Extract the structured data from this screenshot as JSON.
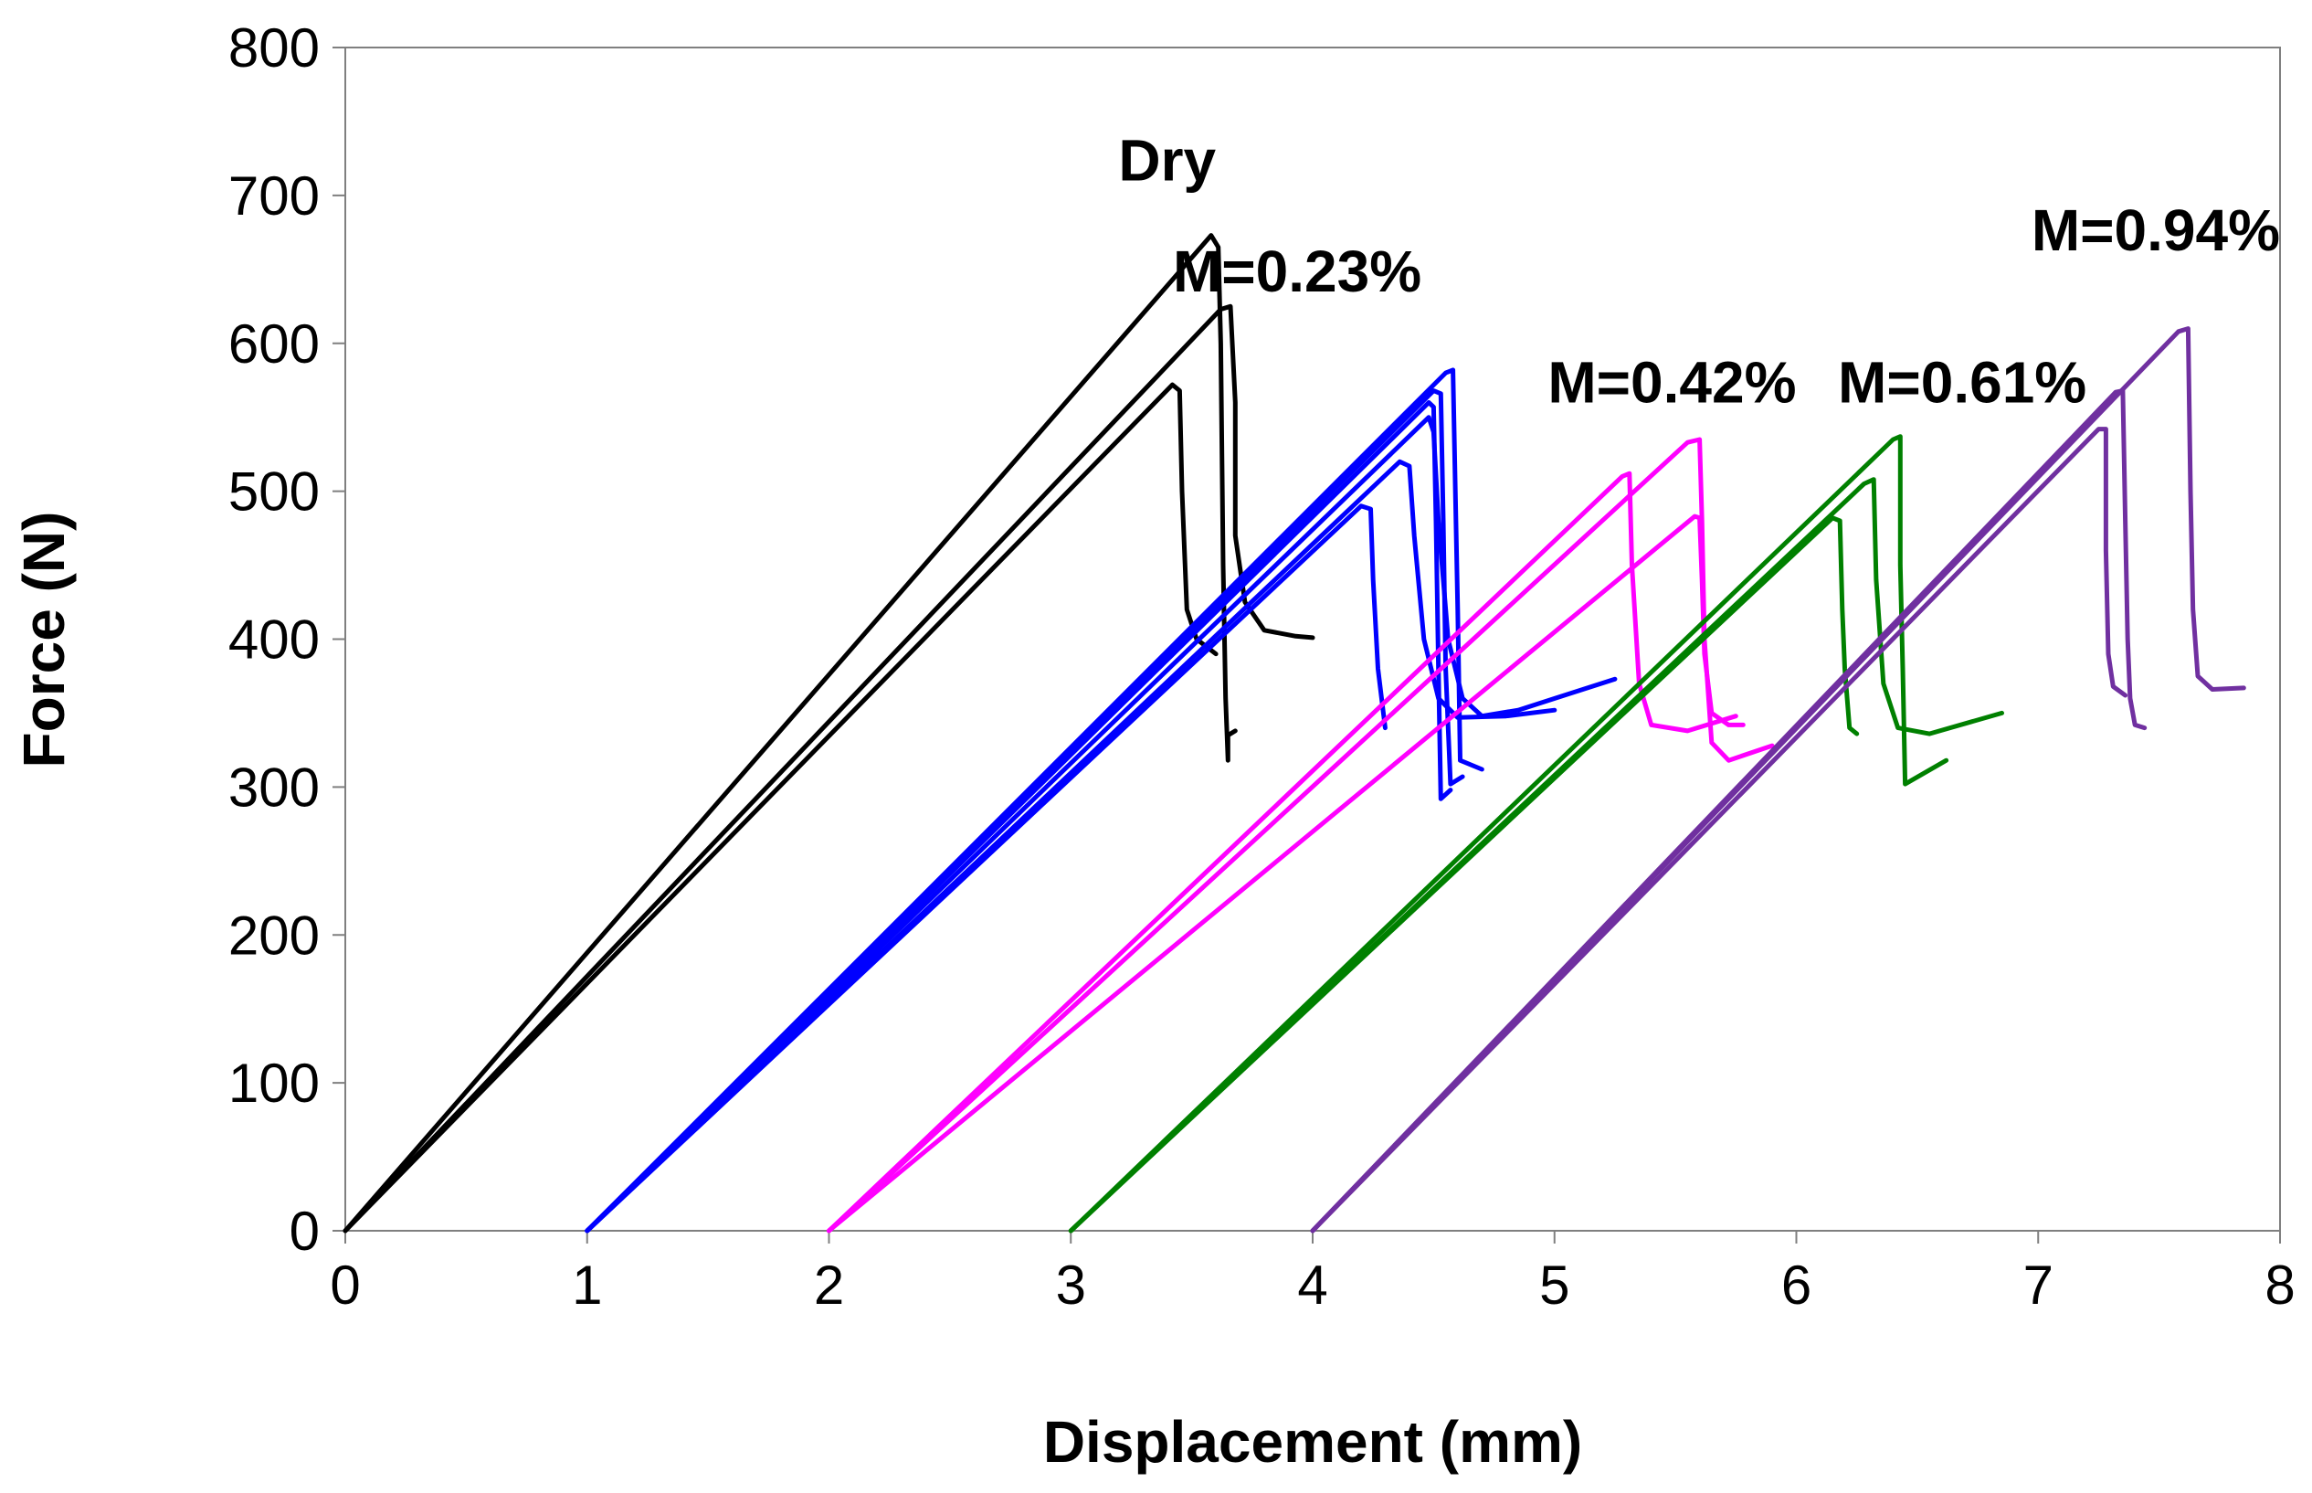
{
  "chart_data": {
    "type": "line",
    "title": "",
    "xlabel": "Displacement (mm)",
    "ylabel": "Force (N)",
    "xlim": [
      0,
      8
    ],
    "ylim": [
      0,
      800
    ],
    "xticks": [
      0,
      1,
      2,
      3,
      4,
      5,
      6,
      7,
      8
    ],
    "yticks": [
      0,
      100,
      200,
      300,
      400,
      500,
      600,
      700,
      800
    ],
    "grid": false,
    "legend": "none",
    "groups": [
      {
        "name": "Dry",
        "label": "Dry",
        "color": "#000000",
        "label_at": [
          3.6,
          710
        ],
        "curves": [
          [
            [
              0,
              0
            ],
            [
              3.58,
              673
            ],
            [
              3.61,
              665
            ],
            [
              3.62,
              600
            ],
            [
              3.63,
              450
            ],
            [
              3.64,
              360
            ],
            [
              3.65,
              318
            ],
            [
              3.65,
              335
            ],
            [
              3.68,
              338
            ]
          ],
          [
            [
              0,
              0
            ],
            [
              3.62,
              623
            ],
            [
              3.66,
              625
            ],
            [
              3.68,
              560
            ],
            [
              3.68,
              470
            ],
            [
              3.72,
              425
            ],
            [
              3.8,
              406
            ],
            [
              3.93,
              402
            ],
            [
              4.0,
              401
            ]
          ],
          [
            [
              0,
              0
            ],
            [
              3.42,
              572
            ],
            [
              3.45,
              568
            ],
            [
              3.46,
              500
            ],
            [
              3.48,
              420
            ],
            [
              3.52,
              400
            ],
            [
              3.6,
              390
            ]
          ]
        ]
      },
      {
        "name": "M=0.23%",
        "label": "M=0.23%",
        "color": "#0000ff",
        "label_at": [
          4.45,
          635
        ],
        "curves": [
          [
            [
              1,
              0
            ],
            [
              4.55,
              580
            ],
            [
              4.58,
              582
            ],
            [
              4.59,
              500
            ],
            [
              4.6,
              420
            ],
            [
              4.61,
              318
            ],
            [
              4.7,
              312
            ]
          ],
          [
            [
              1,
              0
            ],
            [
              4.5,
              568
            ],
            [
              4.53,
              566
            ],
            [
              4.54,
              480
            ],
            [
              4.55,
              380
            ],
            [
              4.57,
              302
            ],
            [
              4.62,
              307
            ]
          ],
          [
            [
              1,
              0
            ],
            [
              4.48,
              560
            ],
            [
              4.5,
              557
            ],
            [
              4.51,
              480
            ],
            [
              4.52,
              380
            ],
            [
              4.53,
              292
            ],
            [
              4.57,
              298
            ]
          ],
          [
            [
              1,
              0
            ],
            [
              4.36,
              520
            ],
            [
              4.4,
              517
            ],
            [
              4.42,
              470
            ],
            [
              4.46,
              400
            ],
            [
              4.52,
              360
            ],
            [
              4.6,
              347
            ],
            [
              4.8,
              348
            ],
            [
              5.0,
              352
            ]
          ],
          [
            [
              1,
              0
            ],
            [
              4.2,
              490
            ],
            [
              4.24,
              488
            ],
            [
              4.25,
              440
            ],
            [
              4.27,
              380
            ],
            [
              4.3,
              340
            ]
          ],
          [
            [
              1,
              0
            ],
            [
              4.48,
              550
            ],
            [
              4.5,
              540
            ],
            [
              4.52,
              480
            ],
            [
              4.56,
              400
            ],
            [
              4.62,
              360
            ],
            [
              4.7,
              348
            ],
            [
              4.85,
              352
            ],
            [
              5.25,
              373
            ]
          ]
        ]
      },
      {
        "name": "M=0.42%",
        "label": "M=0.42%",
        "color": "#ff00ff",
        "label_at": [
          6.0,
          560
        ],
        "curves": [
          [
            [
              2,
              0
            ],
            [
              5.55,
              533
            ],
            [
              5.6,
              535
            ],
            [
              5.61,
              480
            ],
            [
              5.62,
              400
            ],
            [
              5.65,
              330
            ],
            [
              5.72,
              318
            ],
            [
              5.9,
              328
            ]
          ],
          [
            [
              2,
              0
            ],
            [
              5.28,
              510
            ],
            [
              5.31,
              512
            ],
            [
              5.32,
              450
            ],
            [
              5.35,
              370
            ],
            [
              5.4,
              342
            ],
            [
              5.55,
              338
            ],
            [
              5.75,
              348
            ]
          ],
          [
            [
              2,
              0
            ],
            [
              5.58,
              483
            ],
            [
              5.6,
              482
            ],
            [
              5.61,
              440
            ],
            [
              5.62,
              390
            ],
            [
              5.65,
              350
            ],
            [
              5.72,
              342
            ],
            [
              5.78,
              342
            ]
          ]
        ]
      },
      {
        "name": "M=0.61%",
        "label": "M=0.61%",
        "color": "#008000",
        "label_at": [
          7.2,
          560
        ],
        "curves": [
          [
            [
              3,
              0
            ],
            [
              6.4,
              535
            ],
            [
              6.43,
              537
            ],
            [
              6.43,
              450
            ],
            [
              6.44,
              380
            ],
            [
              6.45,
              302
            ],
            [
              6.62,
              318
            ]
          ],
          [
            [
              3,
              0
            ],
            [
              6.28,
              505
            ],
            [
              6.32,
              508
            ],
            [
              6.33,
              440
            ],
            [
              6.36,
              370
            ],
            [
              6.42,
              340
            ],
            [
              6.55,
              336
            ],
            [
              6.85,
              350
            ]
          ],
          [
            [
              3,
              0
            ],
            [
              6.15,
              482
            ],
            [
              6.18,
              480
            ],
            [
              6.19,
              420
            ],
            [
              6.2,
              380
            ],
            [
              6.22,
              340
            ],
            [
              6.25,
              336
            ]
          ]
        ]
      },
      {
        "name": "M=0.94%",
        "label": "M=0.94%",
        "color": "#7030a0",
        "label_at": [
          8.0,
          663
        ],
        "curves": [
          [
            [
              4,
              0
            ],
            [
              7.58,
              608
            ],
            [
              7.62,
              610
            ],
            [
              7.63,
              500
            ],
            [
              7.64,
              420
            ],
            [
              7.66,
              375
            ],
            [
              7.72,
              366
            ],
            [
              7.85,
              367
            ]
          ],
          [
            [
              4,
              0
            ],
            [
              7.32,
              567
            ],
            [
              7.35,
              568
            ],
            [
              7.36,
              480
            ],
            [
              7.37,
              400
            ],
            [
              7.38,
              360
            ],
            [
              7.4,
              342
            ],
            [
              7.44,
              340
            ]
          ],
          [
            [
              4,
              0
            ],
            [
              7.25,
              542
            ],
            [
              7.28,
              542
            ],
            [
              7.28,
              460
            ],
            [
              7.29,
              390
            ],
            [
              7.31,
              368
            ],
            [
              7.36,
              362
            ]
          ]
        ]
      }
    ]
  }
}
